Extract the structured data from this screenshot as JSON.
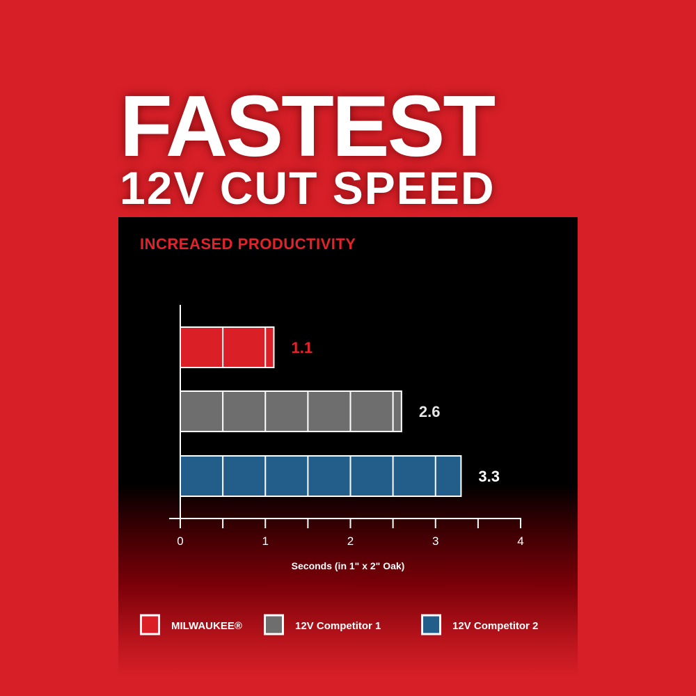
{
  "headline": {
    "line1": "FASTEST",
    "line2": "12V CUT SPEED"
  },
  "chart_data": {
    "type": "bar",
    "orientation": "horizontal",
    "title": "INCREASED PRODUCTIVITY",
    "xlabel": "Seconds (in 1\" x 2\" Oak)",
    "ylabel": "",
    "xlim": [
      0,
      4
    ],
    "xticks": [
      "0",
      "1",
      "2",
      "3",
      "4"
    ],
    "minor_tick_step": 0.5,
    "grid": false,
    "legend_placement": "bottom",
    "series": [
      {
        "name": "MILWAUKEE®",
        "value": 1.1,
        "label": "1.1",
        "color": "#da1f26",
        "label_color": "#e2232b"
      },
      {
        "name": "12V Competitor 1",
        "value": 2.6,
        "label": "2.6",
        "color": "#6e6e6e",
        "label_color": "#e6e6e6"
      },
      {
        "name": "12V Competitor 2",
        "value": 3.3,
        "label": "3.3",
        "color": "#235e8a",
        "label_color": "#ffffff"
      }
    ]
  }
}
